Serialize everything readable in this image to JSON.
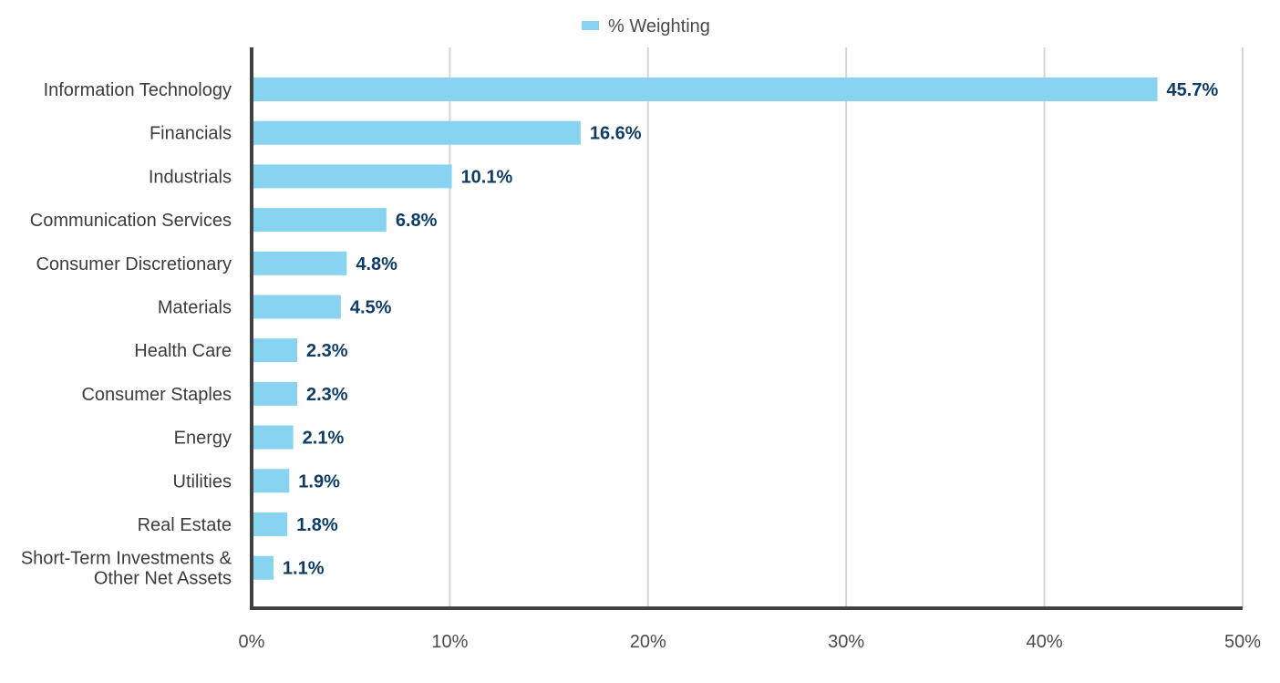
{
  "chart_data": {
    "type": "bar",
    "orientation": "horizontal",
    "categories": [
      "Information Technology",
      "Financials",
      "Industrials",
      "Communication Services",
      "Consumer Discretionary",
      "Materials",
      "Health Care",
      "Consumer Staples",
      "Energy",
      "Utilities",
      "Real Estate",
      "Short-Term Investments & Other Net Assets"
    ],
    "category_lines": [
      [
        "Information Technology"
      ],
      [
        "Financials"
      ],
      [
        "Industrials"
      ],
      [
        "Communication Services"
      ],
      [
        "Consumer Discretionary"
      ],
      [
        "Materials"
      ],
      [
        "Health Care"
      ],
      [
        "Consumer Staples"
      ],
      [
        "Energy"
      ],
      [
        "Utilities"
      ],
      [
        "Real Estate"
      ],
      [
        "Short-Term Investments &",
        "Other Net Assets"
      ]
    ],
    "series": [
      {
        "name": "% Weighting",
        "values": [
          45.7,
          16.6,
          10.1,
          6.8,
          4.8,
          4.5,
          2.3,
          2.3,
          2.1,
          1.9,
          1.8,
          1.1
        ],
        "labels": [
          "45.7%",
          "16.6%",
          "10.1%",
          "6.8%",
          "4.8%",
          "4.5%",
          "2.3%",
          "2.3%",
          "2.1%",
          "1.9%",
          "1.8%",
          "1.1%"
        ]
      }
    ],
    "xlim": [
      0,
      50
    ],
    "xticks": [
      0,
      10,
      20,
      30,
      40,
      50
    ],
    "xtick_labels": [
      "0%",
      "10%",
      "20%",
      "30%",
      "40%",
      "50%"
    ],
    "title": "",
    "xlabel": "",
    "ylabel": "",
    "grid": "vertical",
    "legend_position": "top-center",
    "colors": {
      "bar": "#87d3f0",
      "value_label": "#0f3c66",
      "category_label": "#3c3c3c",
      "tick_label": "#4a4a4a",
      "axis": "#404040",
      "grid": "#d6d6d6"
    }
  }
}
